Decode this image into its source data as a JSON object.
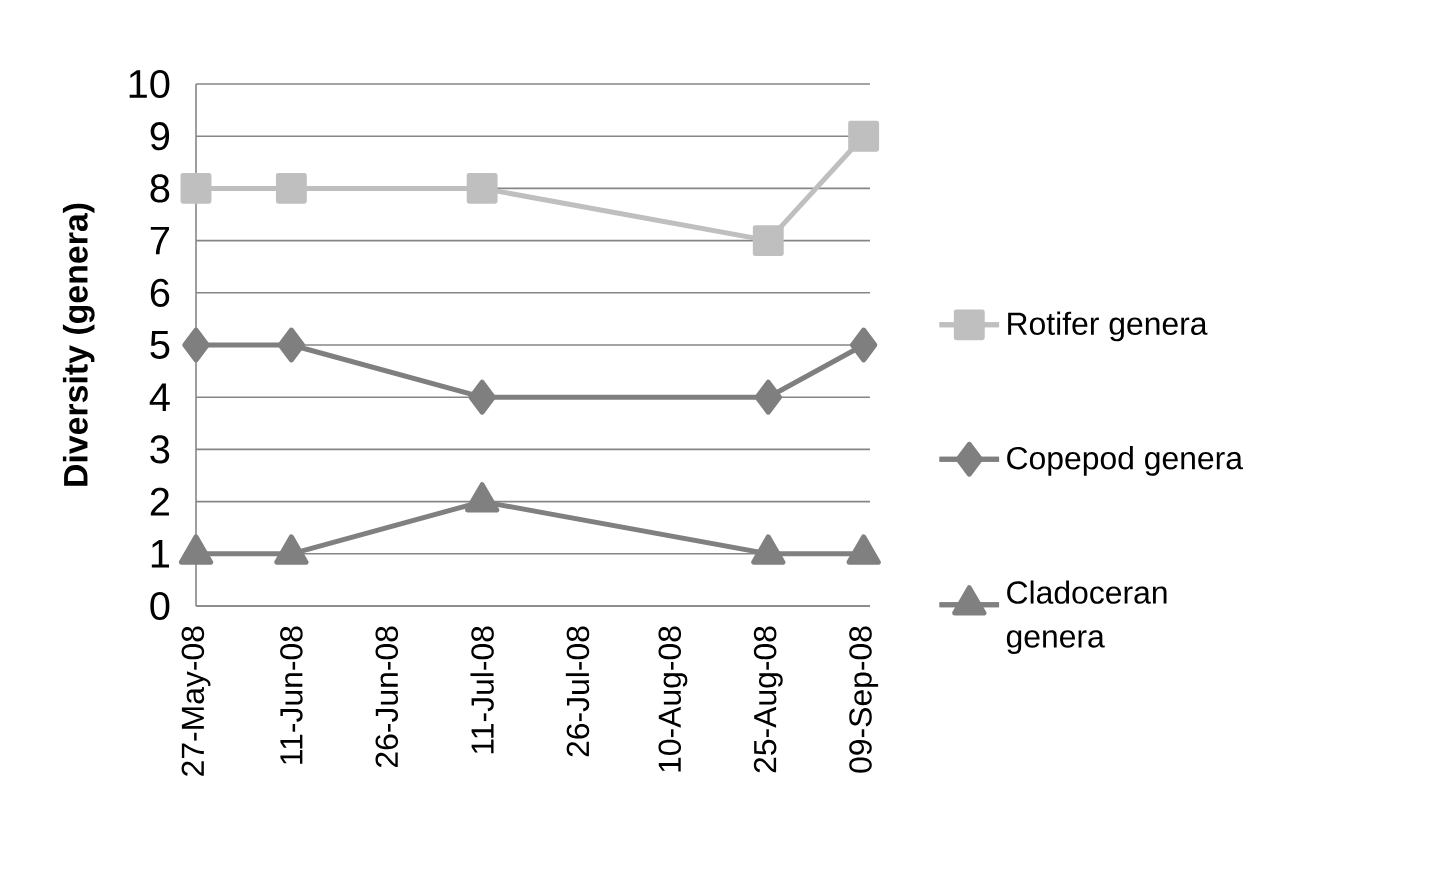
{
  "chart_data": {
    "type": "line",
    "ylabel": "Diversity (genera)",
    "series": [
      {
        "name": "Rotifer genera",
        "color": "#bfbfbf",
        "marker": "square",
        "x": [
          "2008-05-27",
          "2008-06-11",
          "2008-07-11",
          "2008-08-25",
          "2008-09-09"
        ],
        "values": [
          8,
          8,
          8,
          7,
          9
        ]
      },
      {
        "name": "Copepod genera",
        "color": "#7f7f7f",
        "marker": "diamond",
        "x": [
          "2008-05-27",
          "2008-06-11",
          "2008-07-11",
          "2008-08-25",
          "2008-09-09"
        ],
        "values": [
          5,
          5,
          4,
          4,
          5
        ]
      },
      {
        "name": "Cladoceran genera",
        "color": "#808080",
        "marker": "triangle",
        "x": [
          "2008-05-27",
          "2008-06-11",
          "2008-07-11",
          "2008-08-25",
          "2008-09-09"
        ],
        "values": [
          1,
          1,
          2,
          1,
          1
        ]
      }
    ],
    "xlim": [
      "2008-05-27",
      "2008-09-10"
    ],
    "xticks": [
      {
        "value": "2008-05-27",
        "label": "27-May-08"
      },
      {
        "value": "2008-06-11",
        "label": "11-Jun-08"
      },
      {
        "value": "2008-06-26",
        "label": "26-Jun-08"
      },
      {
        "value": "2008-07-11",
        "label": "11-Jul-08"
      },
      {
        "value": "2008-07-26",
        "label": "26-Jul-08"
      },
      {
        "value": "2008-08-10",
        "label": "10-Aug-08"
      },
      {
        "value": "2008-08-25",
        "label": "25-Aug-08"
      },
      {
        "value": "2008-09-09",
        "label": "09-Sep-08"
      }
    ],
    "ylim": [
      0,
      10
    ],
    "yticks": [
      0,
      1,
      2,
      3,
      4,
      5,
      6,
      7,
      8,
      9,
      10
    ],
    "grid": "y",
    "legend": "right",
    "line_style": "solid"
  }
}
